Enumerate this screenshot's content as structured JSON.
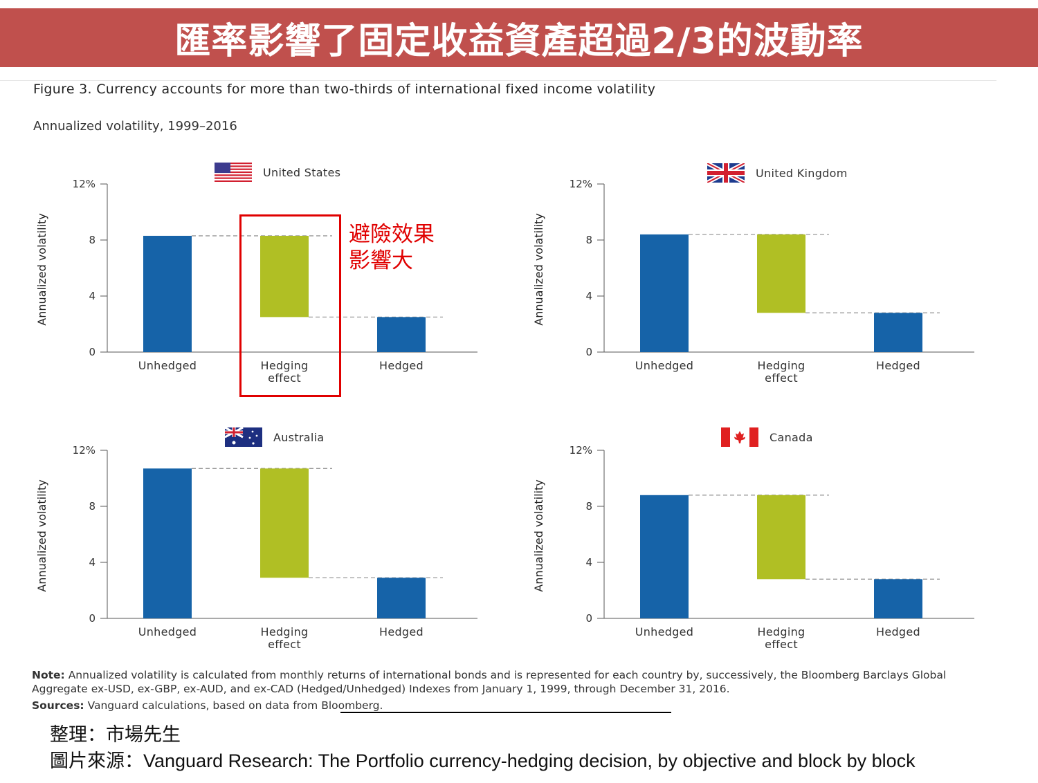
{
  "banner": {
    "title": "匯率影響了固定收益資產超過2/3的波動率"
  },
  "figure": {
    "title": "Figure 3. Currency accounts for more than two-thirds of international fixed income volatility",
    "subtitle": "Annualized volatility, 1999–2016"
  },
  "colors": {
    "bar_blue": "#1663a8",
    "hedging_green": "#b0bf24",
    "banner": "#c0504d",
    "annotation": "#e00000"
  },
  "chart_data": [
    {
      "type": "bar",
      "country": "United States",
      "flag": "us-flag-icon",
      "categories": [
        "Unhedged",
        "Hedging\neffect",
        "Hedged"
      ],
      "values": [
        8.3,
        5.8,
        2.5
      ],
      "hedging_range": [
        2.5,
        8.3
      ],
      "ylabel": "Annualized volatility",
      "yticks": [
        "0",
        "4",
        "8",
        "12%"
      ],
      "ylim": [
        0,
        12
      ]
    },
    {
      "type": "bar",
      "country": "United Kingdom",
      "flag": "uk-flag-icon",
      "categories": [
        "Unhedged",
        "Hedging\neffect",
        "Hedged"
      ],
      "values": [
        8.4,
        5.6,
        2.8
      ],
      "hedging_range": [
        2.8,
        8.4
      ],
      "ylabel": "Annualized volatility",
      "yticks": [
        "0",
        "4",
        "8",
        "12%"
      ],
      "ylim": [
        0,
        12
      ]
    },
    {
      "type": "bar",
      "country": "Australia",
      "flag": "australia-flag-icon",
      "categories": [
        "Unhedged",
        "Hedging\neffect",
        "Hedged"
      ],
      "values": [
        10.7,
        7.8,
        2.9
      ],
      "hedging_range": [
        2.9,
        10.7
      ],
      "ylabel": "Annualized volatility",
      "yticks": [
        "0",
        "4",
        "8",
        "12%"
      ],
      "ylim": [
        0,
        12
      ]
    },
    {
      "type": "bar",
      "country": "Canada",
      "flag": "canada-flag-icon",
      "categories": [
        "Unhedged",
        "Hedging\neffect",
        "Hedged"
      ],
      "values": [
        8.8,
        6.0,
        2.8
      ],
      "hedging_range": [
        2.8,
        8.8
      ],
      "ylabel": "Annualized volatility",
      "yticks": [
        "0",
        "4",
        "8",
        "12%"
      ],
      "ylim": [
        0,
        12
      ]
    }
  ],
  "annotation": {
    "text": "避險效果\n影響大"
  },
  "note": {
    "label": "Note:",
    "text": "Annualized volatility is calculated from monthly returns of international bonds and is represented for each country by, successively, the Bloomberg Barclays Global Aggregate ex-USD, ex-GBP, ex-AUD, and ex-CAD (Hedged/Unhedged) Indexes from January 1, 1999, through December 31, 2016."
  },
  "sources": {
    "label": "Sources:",
    "text": "Vanguard calculations, based on data from Bloomberg."
  },
  "credits": {
    "compiler": "整理：市場先生",
    "image_source": "圖片來源：Vanguard Research: The Portfolio currency-hedging decision, by objective and block by block"
  }
}
